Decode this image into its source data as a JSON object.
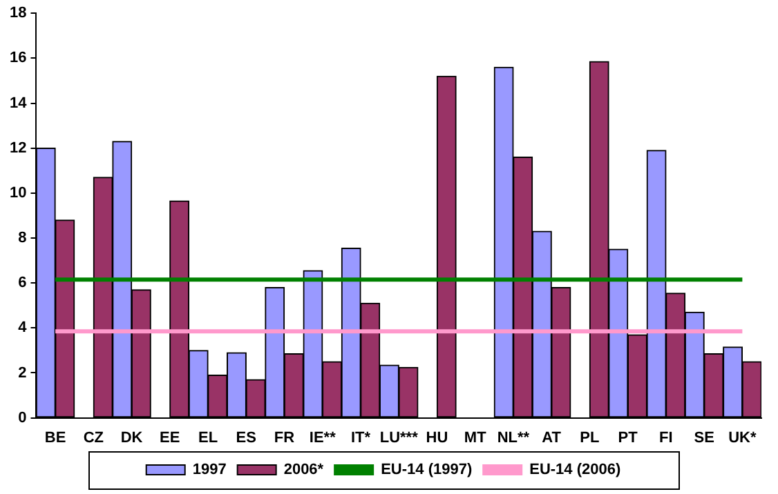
{
  "chart_data": {
    "type": "bar",
    "categories": [
      "BE",
      "CZ",
      "DK",
      "EE",
      "EL",
      "ES",
      "FR",
      "IE**",
      "IT*",
      "LU***",
      "HU",
      "MT",
      "NL**",
      "AT",
      "PL",
      "PT",
      "FI",
      "SE",
      "UK*"
    ],
    "series": [
      {
        "name": "1997",
        "color": "#9999ff",
        "values": [
          12.0,
          null,
          12.3,
          null,
          3.0,
          2.9,
          5.8,
          6.55,
          7.55,
          2.35,
          null,
          null,
          15.6,
          8.3,
          null,
          7.5,
          11.9,
          4.7,
          3.15
        ]
      },
      {
        "name": "2006*",
        "color": "#993366",
        "values": [
          8.8,
          10.7,
          5.7,
          9.65,
          1.9,
          1.7,
          2.85,
          2.5,
          5.1,
          2.25,
          15.2,
          null,
          11.6,
          5.8,
          15.85,
          3.7,
          5.55,
          2.85,
          2.5
        ]
      }
    ],
    "ref_lines": [
      {
        "axis": "y",
        "value": 6.15,
        "label": "EU-14 (1997)",
        "color": "#008000"
      },
      {
        "axis": "y",
        "value": 3.85,
        "label": "EU-14 (2006)",
        "color": "#ff99cc"
      }
    ],
    "ylim": [
      0,
      18
    ],
    "yticks": [
      0,
      2,
      4,
      6,
      8,
      10,
      12,
      14,
      16,
      18
    ],
    "grid": false,
    "legend": "bottom"
  }
}
